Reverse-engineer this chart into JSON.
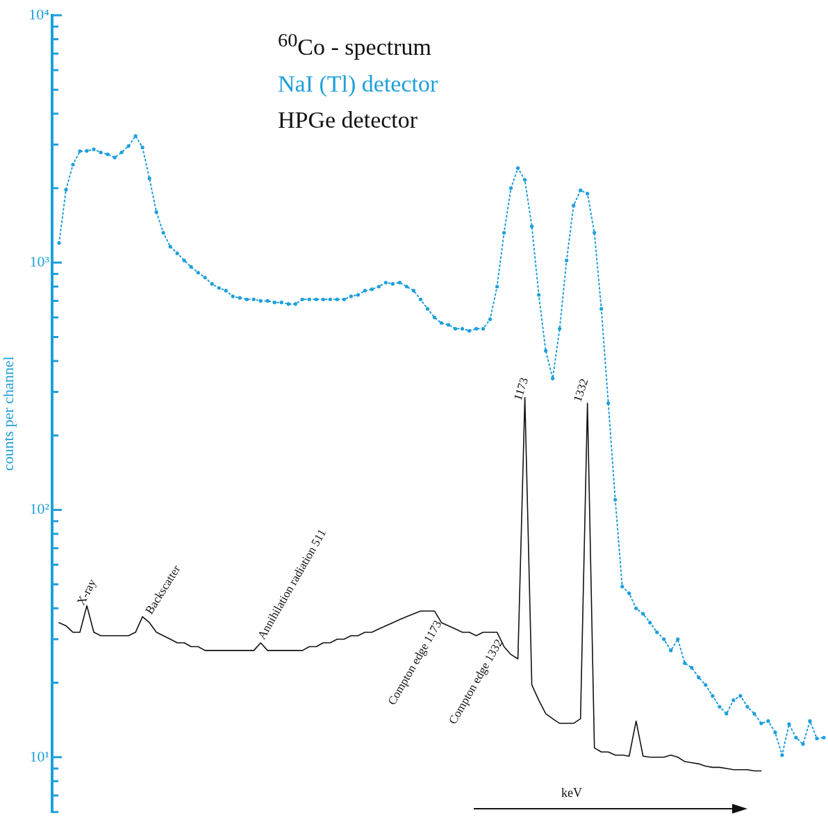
{
  "chart_data": {
    "type": "line",
    "title": "$^{60}$Co - spectrum",
    "ylabel": "counts per channel",
    "xlabel": "keV",
    "legend": "top",
    "log": "y",
    "grid": false,
    "categories": [
      null,
      null,
      null,
      null,
      null,
      null,
      null,
      null,
      null,
      null,
      null,
      null,
      null,
      null,
      null,
      null,
      null,
      null,
      null,
      null,
      null,
      null,
      null,
      null,
      null,
      null,
      null,
      null,
      null,
      null,
      null,
      null,
      null,
      null,
      null,
      null,
      null,
      null,
      null,
      null,
      null,
      null,
      null,
      null,
      null,
      null,
      null,
      null,
      null,
      null,
      null,
      null,
      null,
      null,
      null,
      null,
      null,
      null,
      null,
      null,
      null,
      null,
      null,
      null,
      null,
      null,
      null,
      null,
      null,
      null,
      null,
      null,
      null,
      null,
      null,
      null,
      null,
      null,
      null,
      null,
      null,
      null,
      null,
      null,
      null,
      null,
      null,
      null,
      null,
      null,
      null,
      null,
      null,
      null,
      null,
      null,
      null,
      null,
      null,
      null,
      null,
      null,
      null,
      null,
      null,
      null,
      null,
      null,
      null,
      null,
      null,
      null
    ],
    "ylim": [
      6,
      10000
    ],
    "yticks": [
      {
        "value": 6,
        "label": null
      },
      {
        "value": 7,
        "label": null
      },
      {
        "value": 8,
        "label": null
      },
      {
        "value": 9,
        "label": null
      },
      {
        "value": 10,
        "label": "10¹"
      },
      {
        "value": 20,
        "label": null
      },
      {
        "value": 30,
        "label": null
      },
      {
        "value": 40,
        "label": null
      },
      {
        "value": 50,
        "label": null
      },
      {
        "value": 60,
        "label": null
      },
      {
        "value": 70,
        "label": null
      },
      {
        "value": 80,
        "label": null
      },
      {
        "value": 90,
        "label": null
      },
      {
        "value": 100,
        "label": "10²"
      },
      {
        "value": 200,
        "label": null
      },
      {
        "value": 300,
        "label": null
      },
      {
        "value": 400,
        "label": null
      },
      {
        "value": 500,
        "label": null
      },
      {
        "value": 600,
        "label": null
      },
      {
        "value": 700,
        "label": null
      },
      {
        "value": 800,
        "label": null
      },
      {
        "value": 900,
        "label": null
      },
      {
        "value": 1000,
        "label": "10³"
      },
      {
        "value": 2000,
        "label": null
      },
      {
        "value": 3000,
        "label": null
      },
      {
        "value": 4000,
        "label": null
      },
      {
        "value": 5000,
        "label": null
      },
      {
        "value": 6000,
        "label": null
      },
      {
        "value": 7000,
        "label": null
      },
      {
        "value": 8000,
        "label": null
      },
      {
        "value": 9000,
        "label": null
      },
      {
        "value": 10000,
        "label": "10⁴"
      }
    ],
    "series": [
      {
        "name": "NaI (Tl) detector",
        "color": "#1e9fdc",
        "marker": "circle",
        "line_style": "dotted",
        "values": [
          null,
          1200,
          1970,
          2490,
          2820,
          2830,
          2870,
          2790,
          2740,
          2660,
          2790,
          2960,
          3250,
          2920,
          2190,
          1600,
          1320,
          1160,
          1090,
          1020,
          960,
          910,
          870,
          820,
          790,
          770,
          730,
          720,
          710,
          710,
          700,
          700,
          690,
          690,
          680,
          680,
          710,
          710,
          710,
          710,
          710,
          710,
          710,
          730,
          740,
          770,
          780,
          800,
          830,
          820,
          830,
          800,
          770,
          710,
          650,
          600,
          570,
          560,
          540,
          540,
          530,
          540,
          540,
          590,
          800,
          1320,
          2000,
          2410,
          2160,
          1400,
          740,
          440,
          340,
          540,
          1020,
          1700,
          1960,
          1900,
          1320,
          650,
          270,
          110,
          49,
          46,
          40,
          38,
          35,
          32,
          30,
          27,
          30,
          24,
          23,
          21,
          19.6,
          17.7,
          16,
          15,
          17,
          17.7,
          16,
          15,
          13.7,
          14,
          12.6,
          10.2,
          13.6,
          12,
          11.3,
          14,
          11.9,
          12
        ]
      },
      {
        "name": "HPGe detector",
        "color": "#111111",
        "marker": "none",
        "line_style": "solid",
        "values": [
          null,
          35,
          34,
          32,
          32,
          41,
          32,
          31,
          31,
          31,
          31,
          31,
          32,
          37,
          35,
          32,
          31,
          30,
          29,
          29,
          28,
          28,
          27,
          27,
          27,
          27,
          27,
          27,
          27,
          27,
          29,
          27,
          27,
          27,
          27,
          27,
          27,
          28,
          28,
          29,
          29,
          30,
          30,
          31,
          31,
          32,
          32,
          33,
          34,
          35,
          36,
          37,
          38,
          39,
          39,
          39,
          35,
          34,
          33,
          32,
          32,
          31,
          32,
          32,
          32,
          28,
          26,
          25,
          285,
          19.6,
          17,
          15,
          14.3,
          13.7,
          13.7,
          13.7,
          14.3,
          270,
          10.9,
          10.5,
          10.5,
          10.2,
          10.2,
          10.1,
          14,
          10.1,
          10,
          10,
          10,
          10.2,
          10,
          9.6,
          9.5,
          9.4,
          9.2,
          9.1,
          9.1,
          9,
          8.9,
          8.9,
          8.9,
          8.8,
          8.8,
          null,
          null,
          null,
          null,
          null,
          null,
          null,
          null,
          null
        ]
      }
    ],
    "annotations": [
      "X-ray",
      "Backscatter",
      "Annihilation radiation 511",
      "Compton edge 1173",
      "Compton edge 1332",
      "1173",
      "1332"
    ]
  }
}
